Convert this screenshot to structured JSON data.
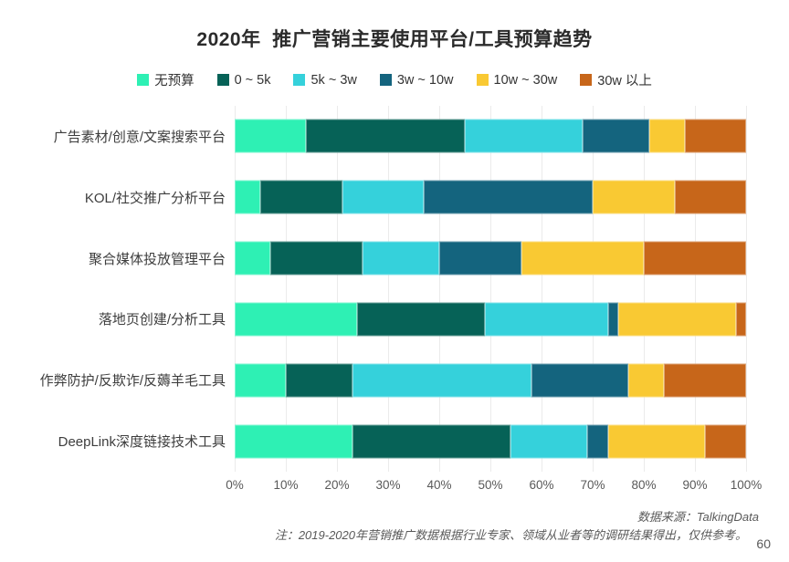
{
  "page": {
    "title": "2020年  推广营销主要使用平台/工具预算趋势",
    "source_note": "数据来源：TalkingData",
    "footnote": "注：2019-2020年营销推广数据根据行业专家、领域从业者等的调研结果得出，仅供参考。",
    "page_number": "60"
  },
  "chart_data": {
    "type": "bar",
    "orientation": "horizontal",
    "stacked": true,
    "unit": "percent",
    "title": "2020年  推广营销主要使用平台/工具预算趋势",
    "categories": [
      "广告素材/创意/文案搜索平台",
      "KOL/社交推广分析平台",
      "聚合媒体投放管理平台",
      "落地页创建/分析工具",
      "作弊防护/反欺诈/反薅羊毛工具",
      "DeepLink深度链接技术工具"
    ],
    "series": [
      {
        "name": "无预算",
        "color": "#2EF0B4",
        "values": [
          14,
          5,
          7,
          24,
          10,
          23
        ]
      },
      {
        "name": "0 ~ 5k",
        "color": "#066257",
        "values": [
          31,
          16,
          18,
          25,
          13,
          31
        ]
      },
      {
        "name": "5k ~ 3w",
        "color": "#35D1DB",
        "values": [
          23,
          16,
          15,
          24,
          35,
          15
        ]
      },
      {
        "name": "3w ~ 10w",
        "color": "#14647E",
        "values": [
          13,
          33,
          16,
          2,
          19,
          4
        ]
      },
      {
        "name": "10w ~ 30w",
        "color": "#F9C933",
        "values": [
          7,
          16,
          24,
          23,
          7,
          19
        ]
      },
      {
        "name": "30w 以上",
        "color": "#C7661A",
        "values": [
          12,
          14,
          20,
          2,
          16,
          8
        ]
      }
    ],
    "x_ticks": [
      "0%",
      "10%",
      "20%",
      "30%",
      "40%",
      "50%",
      "60%",
      "70%",
      "80%",
      "90%",
      "100%"
    ],
    "xlim": [
      0,
      100
    ],
    "grid": true,
    "legend_position": "top"
  }
}
